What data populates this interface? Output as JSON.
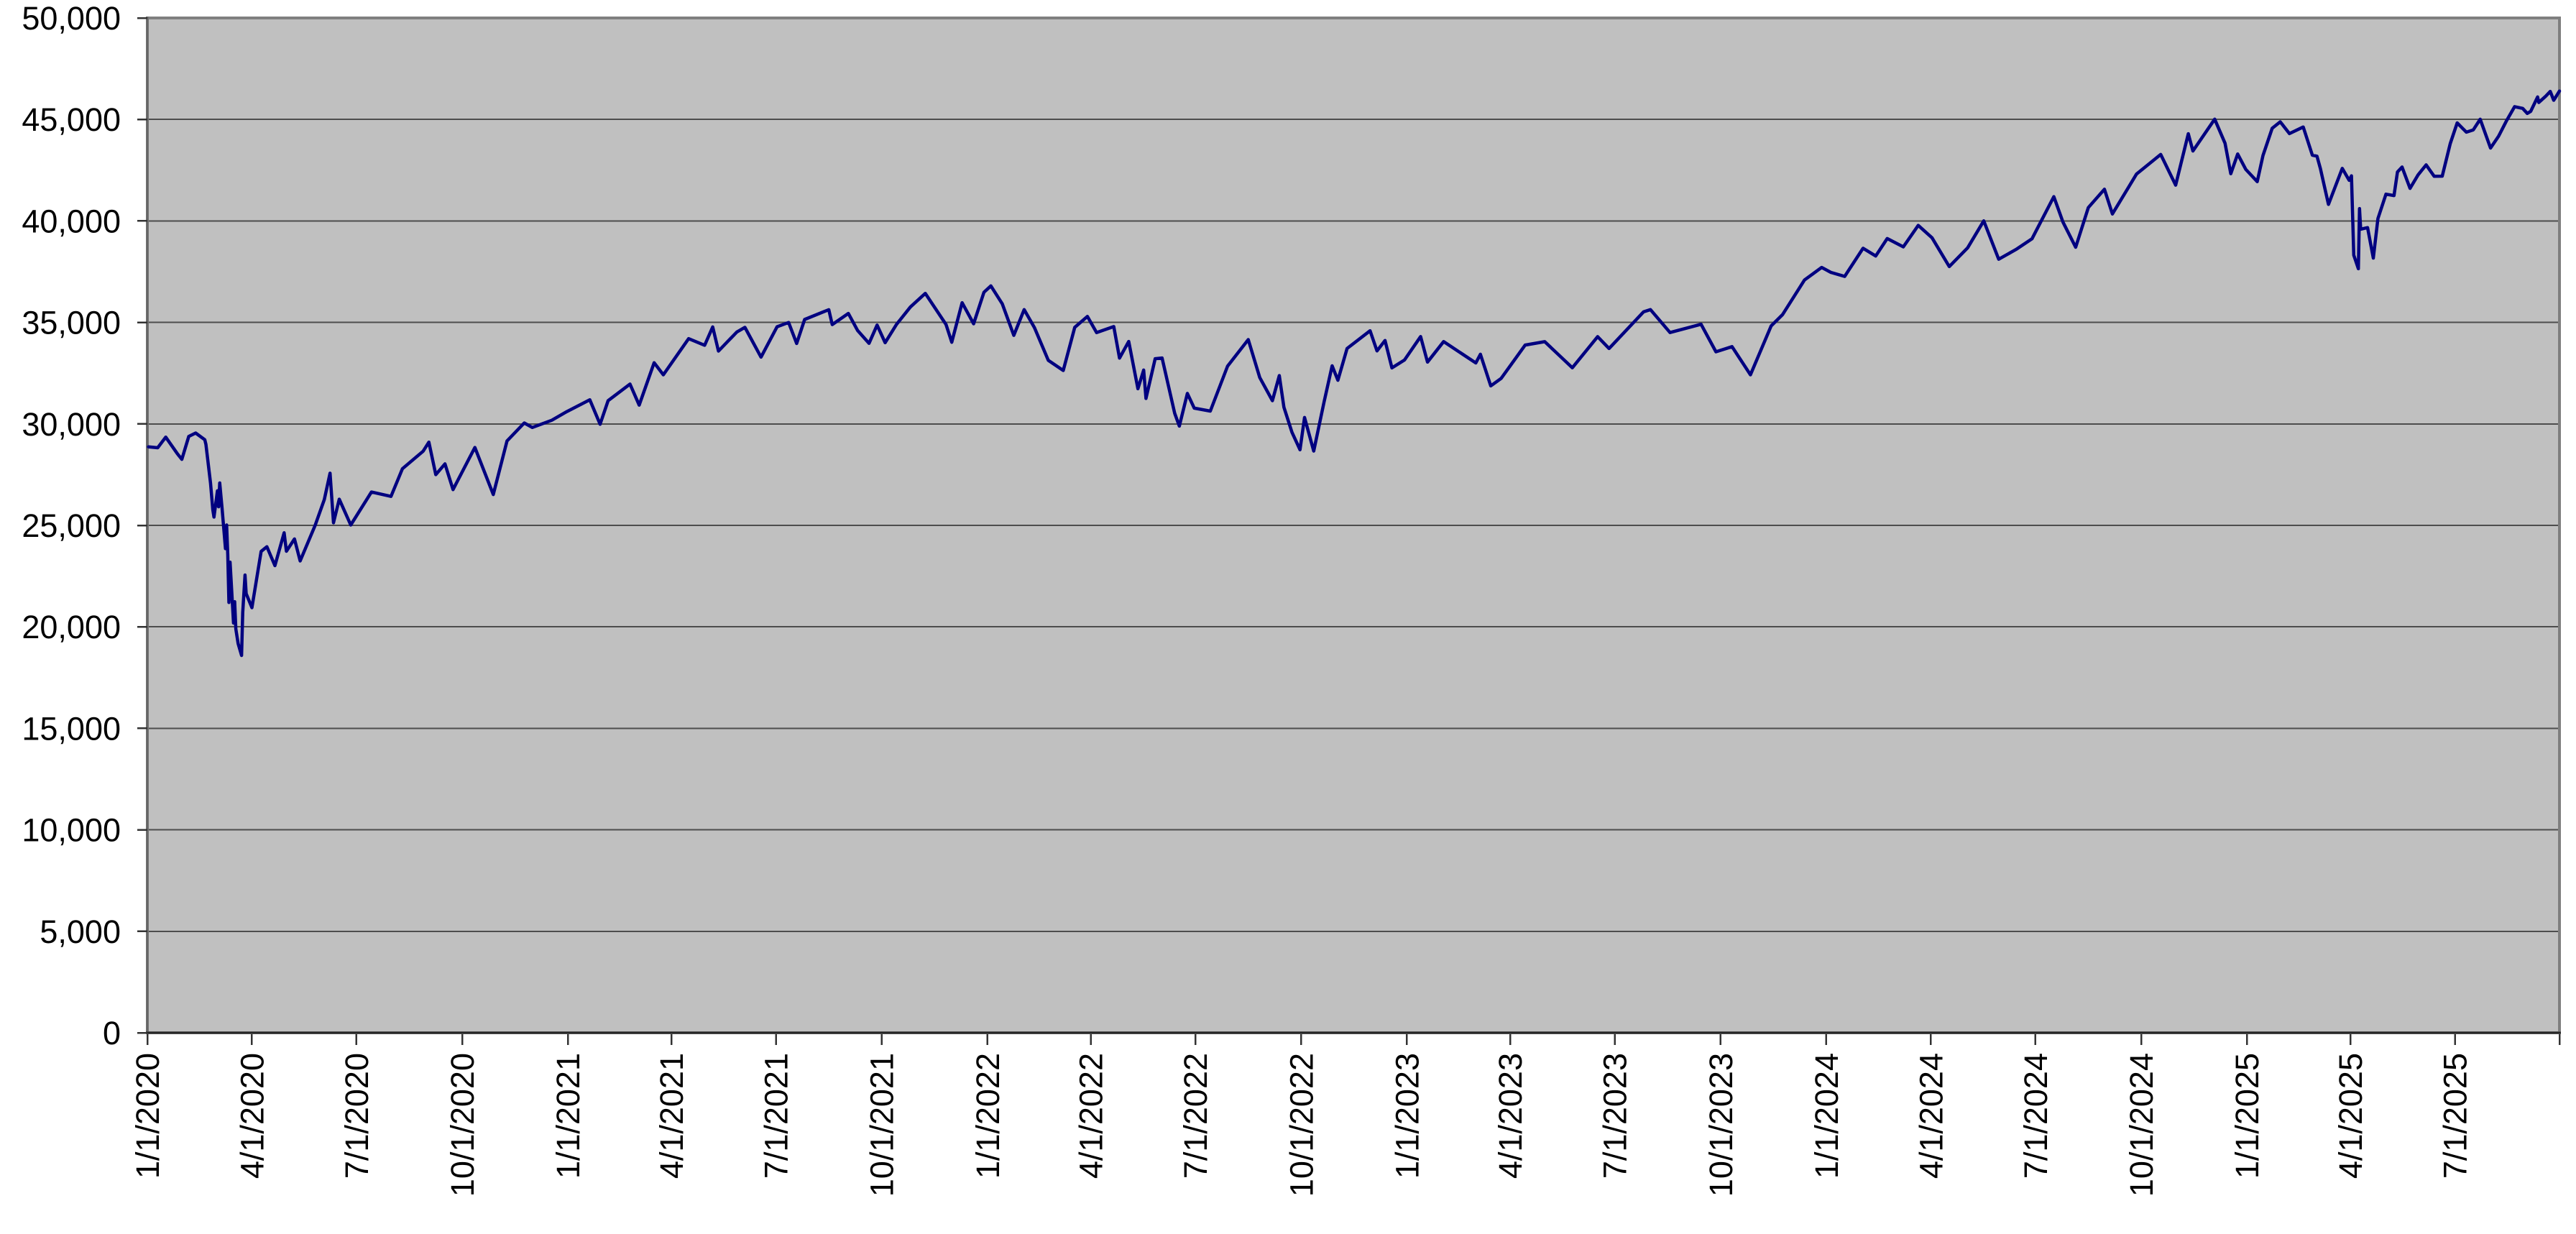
{
  "chart_data": {
    "type": "line",
    "title": "",
    "xlabel": "",
    "ylabel": "",
    "legend": "none",
    "grid": "horizontal",
    "plot_bg_color": "#c0c0c0",
    "line_color": "#000080",
    "gridline_color": "#4d4d4d",
    "border_color": "#7f7f7f",
    "axis_color": "#262626",
    "tick_color": "#333333",
    "page_bg_color": "#ffffff",
    "text_color": "#000000",
    "ylim": [
      0,
      50000
    ],
    "ytick_step": 5000,
    "y_tick_labels": [
      "0",
      "5,000",
      "10,000",
      "15,000",
      "20,000",
      "25,000",
      "30,000",
      "35,000",
      "40,000",
      "45,000",
      "50,000"
    ],
    "x_tick_labels": [
      "1/1/2020",
      "4/1/2020",
      "7/1/2020",
      "10/1/2020",
      "1/1/2021",
      "4/1/2021",
      "7/1/2021",
      "10/1/2021",
      "1/1/2022",
      "4/1/2022",
      "7/1/2022",
      "10/1/2022",
      "1/1/2023",
      "4/1/2023",
      "7/1/2023",
      "10/1/2023",
      "1/1/2024",
      "4/1/2024",
      "7/1/2024",
      "10/1/2024",
      "1/1/2025",
      "4/1/2025",
      "7/1/2025"
    ],
    "x_range": [
      "2020-01-01",
      "2025-09-30"
    ],
    "series": [
      {
        "points": [
          [
            "2020-01-02",
            28869
          ],
          [
            "2020-01-10",
            28824
          ],
          [
            "2020-01-17",
            29348
          ],
          [
            "2020-01-27",
            28536
          ],
          [
            "2020-01-31",
            28256
          ],
          [
            "2020-02-06",
            29380
          ],
          [
            "2020-02-12",
            29551
          ],
          [
            "2020-02-20",
            29220
          ],
          [
            "2020-02-21",
            28992
          ],
          [
            "2020-02-25",
            27081
          ],
          [
            "2020-02-27",
            25767
          ],
          [
            "2020-02-28",
            25409
          ],
          [
            "2020-03-02",
            26703
          ],
          [
            "2020-03-03",
            25917
          ],
          [
            "2020-03-04",
            27091
          ],
          [
            "2020-03-06",
            25865
          ],
          [
            "2020-03-09",
            23851
          ],
          [
            "2020-03-10",
            25018
          ],
          [
            "2020-03-11",
            23553
          ],
          [
            "2020-03-12",
            21201
          ],
          [
            "2020-03-13",
            23186
          ],
          [
            "2020-03-16",
            20188
          ],
          [
            "2020-03-17",
            21237
          ],
          [
            "2020-03-18",
            19899
          ],
          [
            "2020-03-20",
            19174
          ],
          [
            "2020-03-23",
            18592
          ],
          [
            "2020-03-24",
            20705
          ],
          [
            "2020-03-26",
            22552
          ],
          [
            "2020-03-27",
            21637
          ],
          [
            "2020-04-01",
            20944
          ],
          [
            "2020-04-09",
            23719
          ],
          [
            "2020-04-14",
            23950
          ],
          [
            "2020-04-21",
            23018
          ],
          [
            "2020-04-29",
            24634
          ],
          [
            "2020-05-01",
            23724
          ],
          [
            "2020-05-08",
            24331
          ],
          [
            "2020-05-13",
            23248
          ],
          [
            "2020-05-26",
            24995
          ],
          [
            "2020-06-03",
            26270
          ],
          [
            "2020-06-08",
            27572
          ],
          [
            "2020-06-11",
            25128
          ],
          [
            "2020-06-16",
            26290
          ],
          [
            "2020-06-26",
            25016
          ],
          [
            "2020-07-14",
            26643
          ],
          [
            "2020-07-31",
            26428
          ],
          [
            "2020-08-10",
            27791
          ],
          [
            "2020-08-28",
            28654
          ],
          [
            "2020-09-02",
            29100
          ],
          [
            "2020-09-08",
            27500
          ],
          [
            "2020-09-16",
            28032
          ],
          [
            "2020-09-23",
            26763
          ],
          [
            "2020-10-12",
            28838
          ],
          [
            "2020-10-28",
            26520
          ],
          [
            "2020-11-09",
            29158
          ],
          [
            "2020-11-24",
            30046
          ],
          [
            "2020-12-01",
            29824
          ],
          [
            "2020-12-18",
            30179
          ],
          [
            "2020-12-31",
            30606
          ],
          [
            "2021-01-20",
            31188
          ],
          [
            "2021-01-29",
            29983
          ],
          [
            "2021-02-05",
            31148
          ],
          [
            "2021-02-24",
            31962
          ],
          [
            "2021-03-04",
            30924
          ],
          [
            "2021-03-17",
            33015
          ],
          [
            "2021-03-25",
            32420
          ],
          [
            "2021-04-16",
            34201
          ],
          [
            "2021-04-30",
            33875
          ],
          [
            "2021-05-07",
            34778
          ],
          [
            "2021-05-12",
            33588
          ],
          [
            "2021-05-28",
            34529
          ],
          [
            "2021-06-04",
            34756
          ],
          [
            "2021-06-18",
            33290
          ],
          [
            "2021-07-02",
            34786
          ],
          [
            "2021-07-12",
            34996
          ],
          [
            "2021-07-19",
            33962
          ],
          [
            "2021-07-26",
            35144
          ],
          [
            "2021-08-16",
            35625
          ],
          [
            "2021-08-19",
            34894
          ],
          [
            "2021-09-02",
            35444
          ],
          [
            "2021-09-10",
            34608
          ],
          [
            "2021-09-20",
            33970
          ],
          [
            "2021-09-27",
            34869
          ],
          [
            "2021-10-04",
            34003
          ],
          [
            "2021-10-14",
            34913
          ],
          [
            "2021-10-26",
            35757
          ],
          [
            "2021-11-08",
            36432
          ],
          [
            "2021-11-26",
            34899
          ],
          [
            "2021-12-01",
            34022
          ],
          [
            "2021-12-10",
            35971
          ],
          [
            "2021-12-20",
            34932
          ],
          [
            "2021-12-29",
            36488
          ],
          [
            "2022-01-04",
            36800
          ],
          [
            "2022-01-14",
            35912
          ],
          [
            "2022-01-24",
            34364
          ],
          [
            "2022-02-02",
            35629
          ],
          [
            "2022-02-11",
            34738
          ],
          [
            "2022-02-23",
            33132
          ],
          [
            "2022-03-08",
            32632
          ],
          [
            "2022-03-18",
            34755
          ],
          [
            "2022-03-29",
            35294
          ],
          [
            "2022-04-06",
            34497
          ],
          [
            "2022-04-21",
            34793
          ],
          [
            "2022-04-26",
            33240
          ],
          [
            "2022-05-04",
            34061
          ],
          [
            "2022-05-12",
            31730
          ],
          [
            "2022-05-17",
            32654
          ],
          [
            "2022-05-19",
            31253
          ],
          [
            "2022-05-27",
            33213
          ],
          [
            "2022-06-02",
            33248
          ],
          [
            "2022-06-13",
            30517
          ],
          [
            "2022-06-17",
            29889
          ],
          [
            "2022-06-24",
            31501
          ],
          [
            "2022-06-30",
            30775
          ],
          [
            "2022-07-14",
            30630
          ],
          [
            "2022-07-29",
            32845
          ],
          [
            "2022-08-16",
            34152
          ],
          [
            "2022-08-26",
            32283
          ],
          [
            "2022-09-06",
            31145
          ],
          [
            "2022-09-12",
            32381
          ],
          [
            "2022-09-16",
            30822
          ],
          [
            "2022-09-23",
            29590
          ],
          [
            "2022-09-30",
            28726
          ],
          [
            "2022-10-04",
            30316
          ],
          [
            "2022-10-12",
            28661
          ],
          [
            "2022-10-21",
            31083
          ],
          [
            "2022-10-28",
            32862
          ],
          [
            "2022-11-02",
            32148
          ],
          [
            "2022-11-10",
            33715
          ],
          [
            "2022-11-30",
            34590
          ],
          [
            "2022-12-06",
            33596
          ],
          [
            "2022-12-13",
            34109
          ],
          [
            "2022-12-19",
            32758
          ],
          [
            "2022-12-30",
            33147
          ],
          [
            "2023-01-13",
            34303
          ],
          [
            "2023-01-19",
            33045
          ],
          [
            "2023-02-02",
            34054
          ],
          [
            "2023-03-02",
            33003
          ],
          [
            "2023-03-06",
            33431
          ],
          [
            "2023-03-15",
            31875
          ],
          [
            "2023-03-24",
            32238
          ],
          [
            "2023-04-14",
            33886
          ],
          [
            "2023-05-01",
            34051
          ],
          [
            "2023-05-25",
            32764
          ],
          [
            "2023-06-16",
            34299
          ],
          [
            "2023-06-26",
            33714
          ],
          [
            "2023-07-26",
            35520
          ],
          [
            "2023-08-01",
            35630
          ],
          [
            "2023-08-18",
            34501
          ],
          [
            "2023-09-14",
            34907
          ],
          [
            "2023-09-27",
            33550
          ],
          [
            "2023-10-11",
            33805
          ],
          [
            "2023-10-27",
            32418
          ],
          [
            "2023-11-14",
            34828
          ],
          [
            "2023-11-24",
            35390
          ],
          [
            "2023-12-13",
            37090
          ],
          [
            "2023-12-28",
            37710
          ],
          [
            "2024-01-05",
            37466
          ],
          [
            "2024-01-17",
            37267
          ],
          [
            "2024-02-02",
            38654
          ],
          [
            "2024-02-13",
            38273
          ],
          [
            "2024-02-23",
            39131
          ],
          [
            "2024-03-08",
            38723
          ],
          [
            "2024-03-21",
            39781
          ],
          [
            "2024-04-02",
            39170
          ],
          [
            "2024-04-17",
            37753
          ],
          [
            "2024-05-03",
            38676
          ],
          [
            "2024-05-17",
            40004
          ],
          [
            "2024-05-30",
            38111
          ],
          [
            "2024-06-14",
            38589
          ],
          [
            "2024-06-28",
            39119
          ],
          [
            "2024-07-17",
            41198
          ],
          [
            "2024-07-25",
            39935
          ],
          [
            "2024-08-05",
            38703
          ],
          [
            "2024-08-16",
            40660
          ],
          [
            "2024-08-30",
            41563
          ],
          [
            "2024-09-06",
            40345
          ],
          [
            "2024-09-27",
            42313
          ],
          [
            "2024-10-18",
            43275
          ],
          [
            "2024-10-31",
            41763
          ],
          [
            "2024-11-11",
            44294
          ],
          [
            "2024-11-15",
            43445
          ],
          [
            "2024-12-04",
            45014
          ],
          [
            "2024-12-13",
            43828
          ],
          [
            "2024-12-18",
            42327
          ],
          [
            "2024-12-24",
            43297
          ],
          [
            "2024-12-31",
            42544
          ],
          [
            "2025-01-10",
            41938
          ],
          [
            "2025-01-15",
            43222
          ],
          [
            "2025-01-23",
            44565
          ],
          [
            "2025-01-30",
            44882
          ],
          [
            "2025-02-07",
            44303
          ],
          [
            "2025-02-19",
            44627
          ],
          [
            "2025-02-27",
            43239
          ],
          [
            "2025-03-03",
            43191
          ],
          [
            "2025-03-06",
            42579
          ],
          [
            "2025-03-13",
            40813
          ],
          [
            "2025-03-25",
            42587
          ],
          [
            "2025-03-31",
            42002
          ],
          [
            "2025-04-02",
            42225
          ],
          [
            "2025-04-04",
            38315
          ],
          [
            "2025-04-08",
            37646
          ],
          [
            "2025-04-09",
            40608
          ],
          [
            "2025-04-10",
            39594
          ],
          [
            "2025-04-16",
            39669
          ],
          [
            "2025-04-21",
            38170
          ],
          [
            "2025-04-25",
            40114
          ],
          [
            "2025-05-02",
            41317
          ],
          [
            "2025-05-09",
            41249
          ],
          [
            "2025-05-12",
            42410
          ],
          [
            "2025-05-16",
            42655
          ],
          [
            "2025-05-23",
            41603
          ],
          [
            "2025-05-30",
            42270
          ],
          [
            "2025-06-06",
            42763
          ],
          [
            "2025-06-13",
            42198
          ],
          [
            "2025-06-20",
            42207
          ],
          [
            "2025-06-27",
            43819
          ],
          [
            "2025-07-03",
            44829
          ],
          [
            "2025-07-11",
            44372
          ],
          [
            "2025-07-17",
            44485
          ],
          [
            "2025-07-23",
            45010
          ],
          [
            "2025-08-01",
            43589
          ],
          [
            "2025-08-08",
            44176
          ],
          [
            "2025-08-15",
            44946
          ],
          [
            "2025-08-22",
            45632
          ],
          [
            "2025-08-29",
            45545
          ],
          [
            "2025-09-02",
            45296
          ],
          [
            "2025-09-05",
            45401
          ],
          [
            "2025-09-11",
            46108
          ],
          [
            "2025-09-12",
            45834
          ],
          [
            "2025-09-18",
            46142
          ],
          [
            "2025-09-22",
            46381
          ],
          [
            "2025-09-25",
            45947
          ],
          [
            "2025-09-30",
            46398
          ]
        ]
      }
    ]
  }
}
